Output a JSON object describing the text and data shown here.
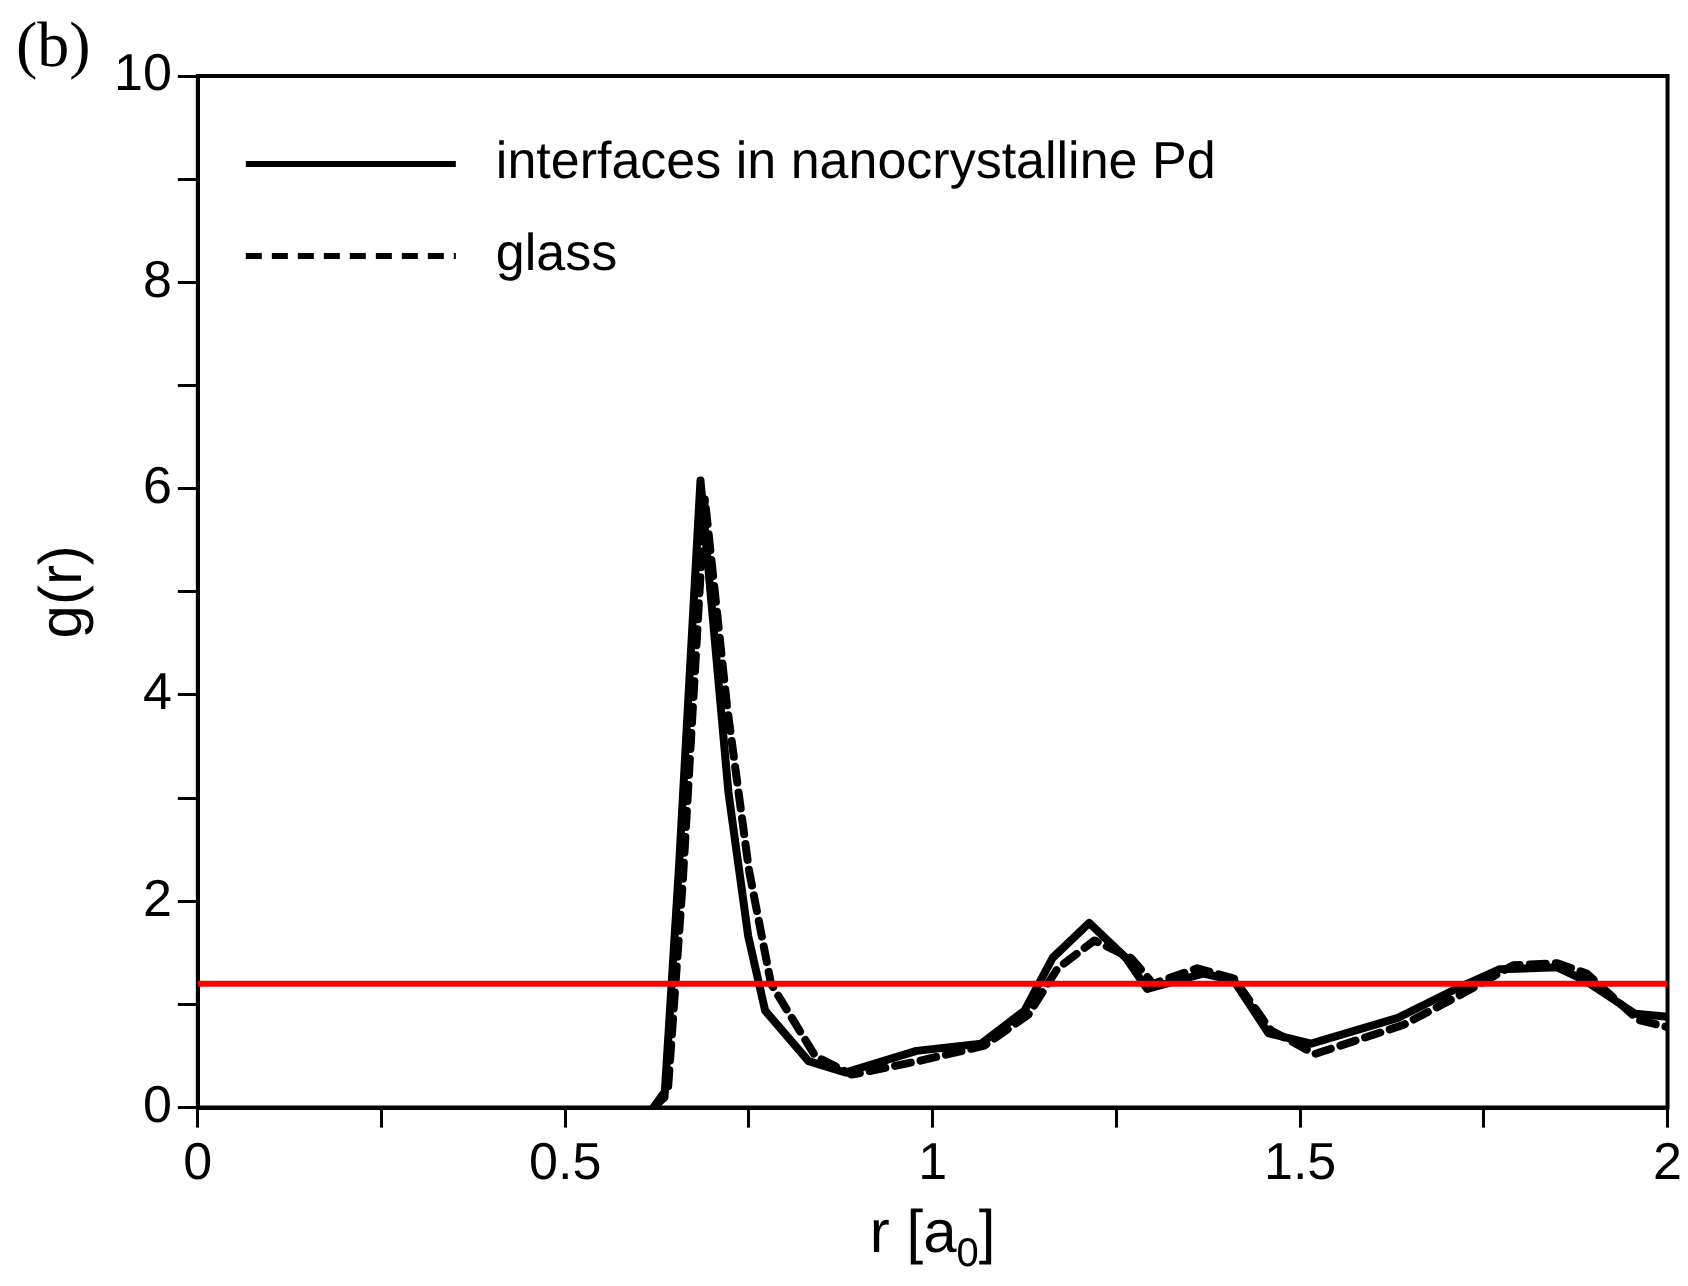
{
  "chart_data": {
    "type": "line",
    "xlabel": "r [a$_{0}$]",
    "ylabel": "g(r)",
    "annotations": [
      "(b)"
    ],
    "xlim": [
      0,
      2
    ],
    "xticks": [
      0,
      {
        "value": 0.25,
        "label": null
      },
      0.5,
      {
        "value": 0.75,
        "label": null
      },
      1,
      {
        "value": 1.25,
        "label": null
      },
      1.5,
      {
        "value": 1.75,
        "label": null
      },
      2
    ],
    "ylim": [
      0,
      10
    ],
    "yticks": [
      0,
      {
        "value": 1,
        "label": null
      },
      2,
      {
        "value": 3,
        "label": null
      },
      4,
      {
        "value": 5,
        "label": null
      },
      6,
      {
        "value": 7,
        "label": null
      },
      8,
      {
        "value": 9,
        "label": null
      },
      10
    ],
    "grid": false,
    "legend": "top left",
    "marker": "none",
    "ref_lines": [
      {
        "axis": "y",
        "value": 1.2,
        "color": "#ff0000"
      }
    ],
    "series": [
      {
        "name": "interfaces in nanocrystalline Pd",
        "color": "#000000",
        "line_style": "solid",
        "x": [
          0.62,
          0.635,
          0.655,
          0.684,
          0.722,
          0.749,
          0.772,
          0.831,
          0.881,
          0.978,
          1.066,
          1.125,
          1.163,
          1.213,
          1.263,
          1.292,
          1.369,
          1.41,
          1.457,
          1.515,
          1.633,
          1.712,
          1.771,
          1.85,
          1.888,
          1.956,
          2.0
        ],
        "values": [
          0,
          0.1,
          2.36,
          6.08,
          3.06,
          1.66,
          0.94,
          0.45,
          0.34,
          0.55,
          0.62,
          0.94,
          1.45,
          1.79,
          1.45,
          1.15,
          1.3,
          1.23,
          0.72,
          0.62,
          0.87,
          1.15,
          1.34,
          1.36,
          1.23,
          0.91,
          0.88
        ]
      },
      {
        "name": "glass",
        "color": "#000000",
        "line_style": "dashed",
        "x": [
          0.62,
          0.64,
          0.66,
          0.69,
          0.72,
          0.75,
          0.78,
          0.84,
          0.89,
          0.98,
          1.07,
          1.13,
          1.17,
          1.22,
          1.27,
          1.3,
          1.36,
          1.41,
          1.46,
          1.52,
          1.64,
          1.72,
          1.79,
          1.85,
          1.89,
          1.96,
          2.0
        ],
        "values": [
          0,
          0.2,
          2.2,
          5.9,
          3.9,
          2.3,
          1.2,
          0.5,
          0.32,
          0.45,
          0.6,
          0.9,
          1.35,
          1.62,
          1.45,
          1.2,
          1.35,
          1.25,
          0.75,
          0.52,
          0.8,
          1.1,
          1.38,
          1.4,
          1.3,
          0.85,
          0.78
        ]
      }
    ]
  }
}
